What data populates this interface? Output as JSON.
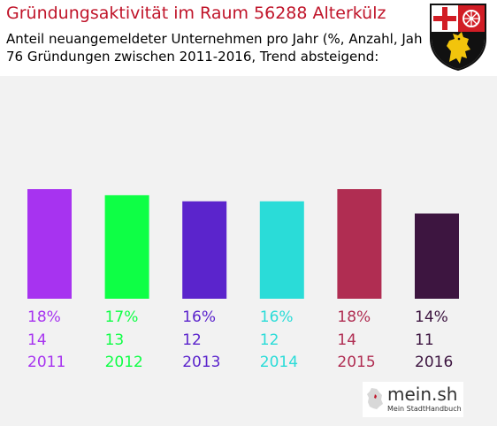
{
  "header": {
    "title": "Gründungsaktivität im Raum 56288 Alterkülz",
    "subtitle_line1": "Anteil neuangemeldeter Unternehmen pro Jahr (%, Anzahl, Jahr)",
    "subtitle_line2": "76 Gründungen zwischen 2011-2016, Trend absteigend:"
  },
  "logo": {
    "name": "mein.sh",
    "tagline": "Mein StadtHandbuch"
  },
  "crest": {
    "icon": "rhineland-palatinate-coat-of-arms-icon"
  },
  "colors": {
    "title": "#c0152a",
    "background": "#f2f2f2"
  },
  "chart_data": {
    "type": "bar",
    "categories": [
      "2011",
      "2012",
      "2013",
      "2014",
      "2015",
      "2016"
    ],
    "series": [
      {
        "values": [
          18,
          17,
          16,
          16,
          18,
          14
        ]
      }
    ],
    "percent_labels": [
      "18%",
      "17%",
      "16%",
      "16%",
      "18%",
      "14%"
    ],
    "count_labels": [
      "14",
      "13",
      "12",
      "12",
      "14",
      "11"
    ],
    "year_labels": [
      "2011",
      "2012",
      "2013",
      "2014",
      "2015",
      "2016"
    ],
    "bar_colors": [
      "#a733f0",
      "#0eff45",
      "#5b24cc",
      "#2adcd8",
      "#b02d52",
      "#3d1540"
    ],
    "label_colors": [
      "#a733f0",
      "#0eff45",
      "#5b24cc",
      "#2adcd8",
      "#b02d52",
      "#3d1540"
    ],
    "grid": false,
    "legend": "none"
  }
}
